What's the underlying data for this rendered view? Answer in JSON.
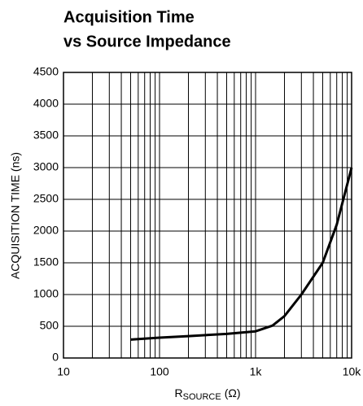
{
  "chart_data": {
    "type": "line",
    "title": [
      "Acquisition Time",
      "vs Source Impedance"
    ],
    "y_label": "ACQUISITION TIME (ns)",
    "x_label": {
      "text": "R",
      "subscript": "SOURCE",
      "suffix": "(Ω)"
    },
    "x_scale": "log",
    "xlim": [
      10,
      10000
    ],
    "xticks": [
      10,
      100,
      {
        "value": 1000,
        "label": "1k"
      },
      {
        "value": 10000,
        "label": "10k"
      }
    ],
    "x_minor_ticks": [
      20,
      30,
      40,
      50,
      60,
      70,
      80,
      90,
      200,
      300,
      400,
      500,
      600,
      700,
      800,
      900,
      2000,
      3000,
      4000,
      5000,
      6000,
      7000,
      8000,
      9000
    ],
    "ylim": [
      0,
      4500
    ],
    "yticks": [
      0,
      500,
      1000,
      1500,
      2000,
      2500,
      3000,
      3500,
      4000,
      4500
    ],
    "grid": true,
    "series": [
      {
        "color": "#000000",
        "x": [
          50,
          100,
          200,
          500,
          1000,
          1500,
          2000,
          3000,
          5000,
          7000,
          10000
        ],
        "values": [
          290,
          320,
          345,
          380,
          420,
          510,
          660,
          1000,
          1500,
          2100,
          3000
        ]
      }
    ]
  }
}
